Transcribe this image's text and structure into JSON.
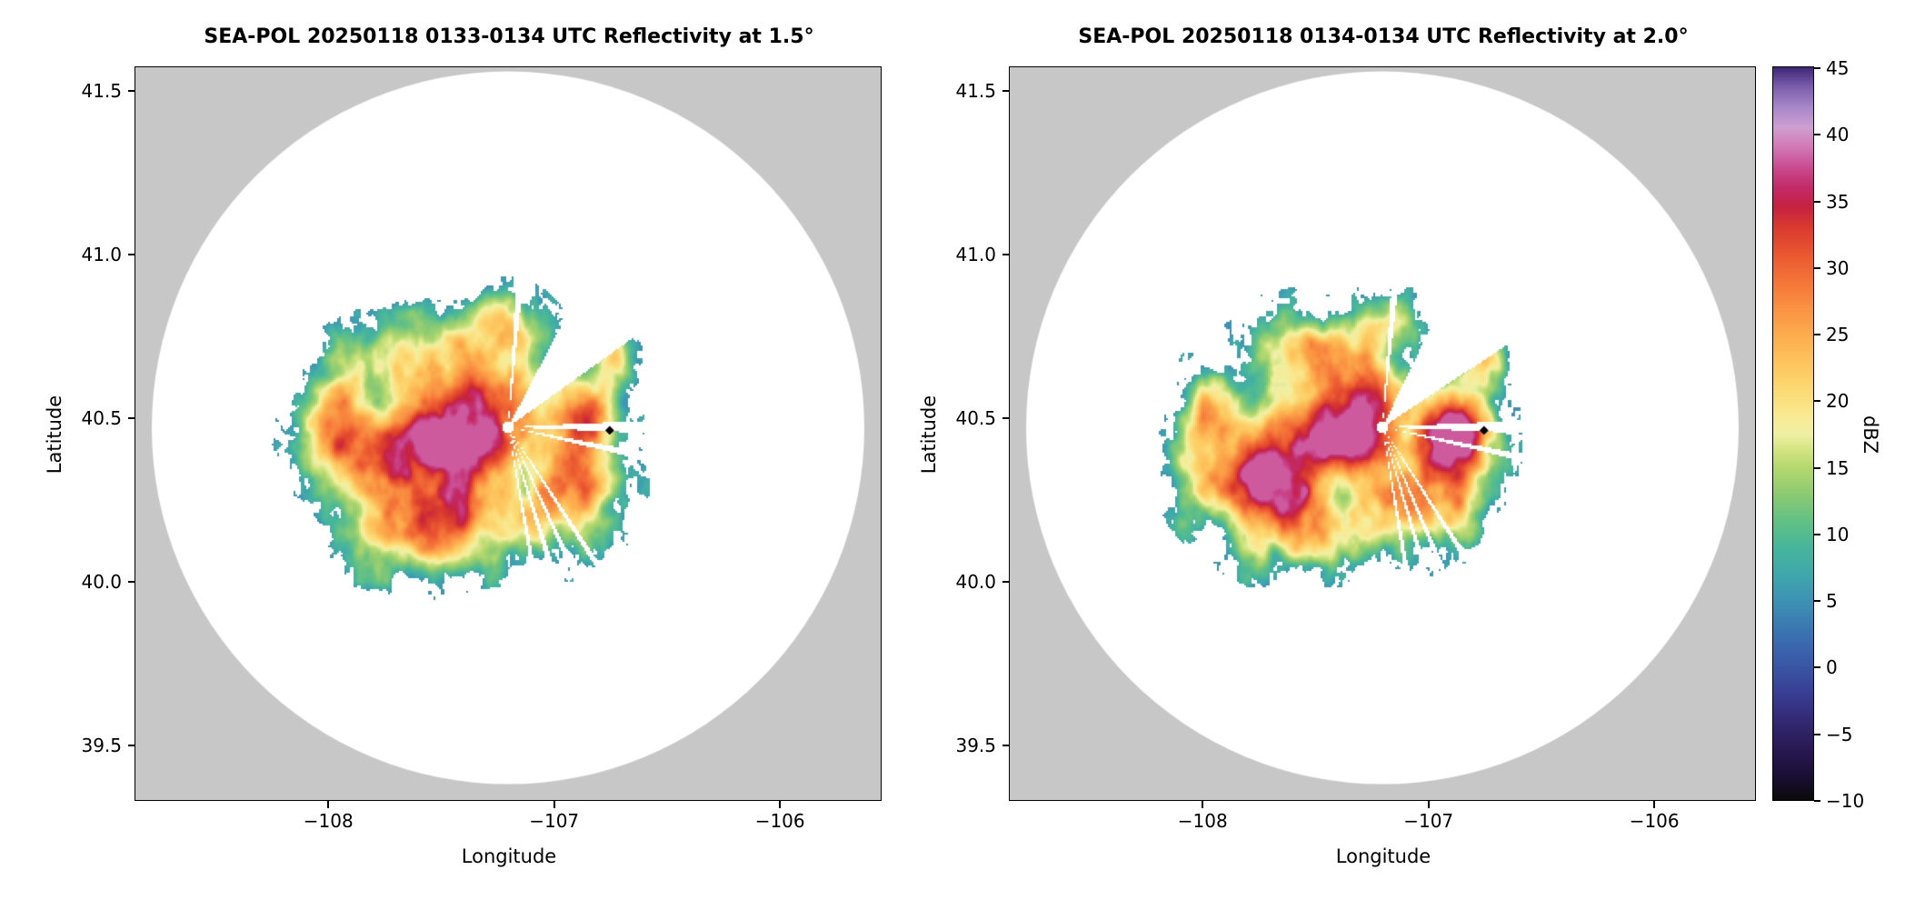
{
  "panels": [
    {
      "title": "SEA-POL 20250118 0133-0134 UTC Reflectivity at 1.5°",
      "xlabel": "Longitude",
      "ylabel": "Latitude",
      "elevation_deg": 1.5,
      "date": "20250118",
      "time_utc": "0133-0134",
      "xticks": [
        {
          "value": -108,
          "label": "−108"
        },
        {
          "value": -107,
          "label": "−107"
        },
        {
          "value": -106,
          "label": "−106"
        }
      ],
      "yticks": [
        {
          "value": 41.5,
          "label": "41.5"
        },
        {
          "value": 41.0,
          "label": "41.0"
        },
        {
          "value": 40.5,
          "label": "40.5"
        },
        {
          "value": 40.0,
          "label": "40.0"
        },
        {
          "value": 39.5,
          "label": "39.5"
        }
      ]
    },
    {
      "title": "SEA-POL 20250118 0134-0134 UTC Reflectivity at 2.0°",
      "xlabel": "Longitude",
      "ylabel": "Latitude",
      "elevation_deg": 2.0,
      "date": "20250118",
      "time_utc": "0134-0134",
      "xticks": [
        {
          "value": -108,
          "label": "−108"
        },
        {
          "value": -107,
          "label": "−107"
        },
        {
          "value": -106,
          "label": "−106"
        }
      ],
      "yticks": [
        {
          "value": 41.5,
          "label": "41.5"
        },
        {
          "value": 41.0,
          "label": "41.0"
        },
        {
          "value": 40.5,
          "label": "40.5"
        },
        {
          "value": 40.0,
          "label": "40.0"
        },
        {
          "value": 39.5,
          "label": "39.5"
        }
      ]
    }
  ],
  "colorbar": {
    "label": "dBZ",
    "vmin": -10,
    "vmax": 45,
    "ticks": [
      {
        "value": 45,
        "label": "45"
      },
      {
        "value": 40,
        "label": "40"
      },
      {
        "value": 35,
        "label": "35"
      },
      {
        "value": 30,
        "label": "30"
      },
      {
        "value": 25,
        "label": "25"
      },
      {
        "value": 20,
        "label": "20"
      },
      {
        "value": 15,
        "label": "15"
      },
      {
        "value": 10,
        "label": "10"
      },
      {
        "value": 5,
        "label": "5"
      },
      {
        "value": 0,
        "label": "0"
      },
      {
        "value": -5,
        "label": "−5"
      },
      {
        "value": -10,
        "label": "−10"
      }
    ]
  },
  "chart_data": {
    "type": "heatmap",
    "subtype": "radar_ppi_reflectivity",
    "instrument": "SEA-POL",
    "units": "dBZ",
    "xlabel": "Longitude",
    "ylabel": "Latitude",
    "xlim": [
      -108.85,
      -105.55
    ],
    "ylim": [
      39.33,
      41.57
    ],
    "value_range": [
      -10,
      45
    ],
    "outside_scan_color": "#c7c7c7",
    "no_echo_color": "#ffffff",
    "radar_center": {
      "lon": -107.2,
      "lat": 40.47
    },
    "marker": {
      "lon": -106.75,
      "lat": 40.46,
      "symbol": "diamond",
      "color": "#000000"
    },
    "colormap_stops": [
      [
        -10,
        "#0a0a0a"
      ],
      [
        -8,
        "#1c1038"
      ],
      [
        -6,
        "#2a1a55"
      ],
      [
        -4,
        "#332a74"
      ],
      [
        -2,
        "#383e92"
      ],
      [
        0,
        "#3a55a5"
      ],
      [
        2,
        "#3b6cb0"
      ],
      [
        5,
        "#3d92b5"
      ],
      [
        7,
        "#3fa8ab"
      ],
      [
        9,
        "#47b69b"
      ],
      [
        11,
        "#63c184"
      ],
      [
        13,
        "#8ccb72"
      ],
      [
        15,
        "#b5d96f"
      ],
      [
        16.5,
        "#d9e687"
      ],
      [
        17.5,
        "#eff0a6"
      ],
      [
        19,
        "#f9e98f"
      ],
      [
        21,
        "#fcd771"
      ],
      [
        23,
        "#fdc35c"
      ],
      [
        25,
        "#fcab4d"
      ],
      [
        27,
        "#f99142"
      ],
      [
        29,
        "#f47438"
      ],
      [
        31,
        "#ea5730"
      ],
      [
        33,
        "#d93a2e"
      ],
      [
        34.5,
        "#c62240"
      ],
      [
        36,
        "#c32a68"
      ],
      [
        37.5,
        "#ca4c92"
      ],
      [
        39,
        "#d278b5"
      ],
      [
        40.5,
        "#cfa0d2"
      ],
      [
        42,
        "#a887c8"
      ],
      [
        43.5,
        "#7c5fae"
      ],
      [
        45,
        "#3f2676"
      ]
    ],
    "panels": [
      {
        "elevation_deg": 1.5,
        "seed": 7,
        "echo_cores": [
          [
            -107.72,
            40.32,
            0.34,
            0.2,
            24
          ],
          [
            -107.38,
            40.44,
            0.26,
            0.11,
            23
          ],
          [
            -107.62,
            40.14,
            0.22,
            0.12,
            19
          ],
          [
            -107.05,
            40.21,
            0.3,
            0.14,
            21
          ],
          [
            -106.86,
            40.5,
            0.15,
            0.11,
            24
          ],
          [
            -107.55,
            40.7,
            0.3,
            0.13,
            15
          ],
          [
            -107.2,
            40.78,
            0.16,
            0.1,
            13
          ],
          [
            -107.97,
            40.52,
            0.13,
            0.14,
            16
          ],
          [
            -106.74,
            40.68,
            0.1,
            0.08,
            13
          ],
          [
            -107.3,
            40.58,
            0.18,
            0.09,
            13
          ],
          [
            -106.9,
            40.35,
            0.18,
            0.1,
            18
          ],
          [
            -107.4,
            40.45,
            0.55,
            0.33,
            10
          ]
        ],
        "blocked_sectors_deg": [
          [
            33,
            60
          ],
          [
            -2.2,
            2.4
          ],
          [
            -12.5,
            -9.5
          ],
          [
            -55.5,
            -53.5
          ],
          [
            -64.5,
            -62.5
          ],
          [
            -72.5,
            -70
          ],
          [
            -80,
            -78
          ],
          [
            83.5,
            86.5
          ]
        ]
      },
      {
        "elevation_deg": 2.0,
        "seed": 13,
        "echo_cores": [
          [
            -107.7,
            40.33,
            0.33,
            0.19,
            24
          ],
          [
            -107.36,
            40.45,
            0.25,
            0.11,
            23
          ],
          [
            -107.6,
            40.15,
            0.21,
            0.12,
            18
          ],
          [
            -107.03,
            40.22,
            0.29,
            0.13,
            21
          ],
          [
            -106.86,
            40.5,
            0.16,
            0.12,
            25
          ],
          [
            -107.53,
            40.71,
            0.29,
            0.12,
            15
          ],
          [
            -107.2,
            40.79,
            0.15,
            0.09,
            13
          ],
          [
            -107.96,
            40.52,
            0.12,
            0.13,
            15
          ],
          [
            -106.74,
            40.67,
            0.1,
            0.08,
            13
          ],
          [
            -107.3,
            40.59,
            0.17,
            0.09,
            13
          ],
          [
            -106.9,
            40.36,
            0.18,
            0.1,
            19
          ],
          [
            -107.4,
            40.45,
            0.54,
            0.32,
            10
          ]
        ],
        "blocked_sectors_deg": [
          [
            31,
            62
          ],
          [
            -2.2,
            2.4
          ],
          [
            -12.5,
            -10
          ],
          [
            -56,
            -54
          ],
          [
            -66,
            -64
          ],
          [
            -73,
            -71
          ],
          [
            -80.5,
            -78.5
          ],
          [
            83,
            86
          ]
        ]
      }
    ]
  }
}
